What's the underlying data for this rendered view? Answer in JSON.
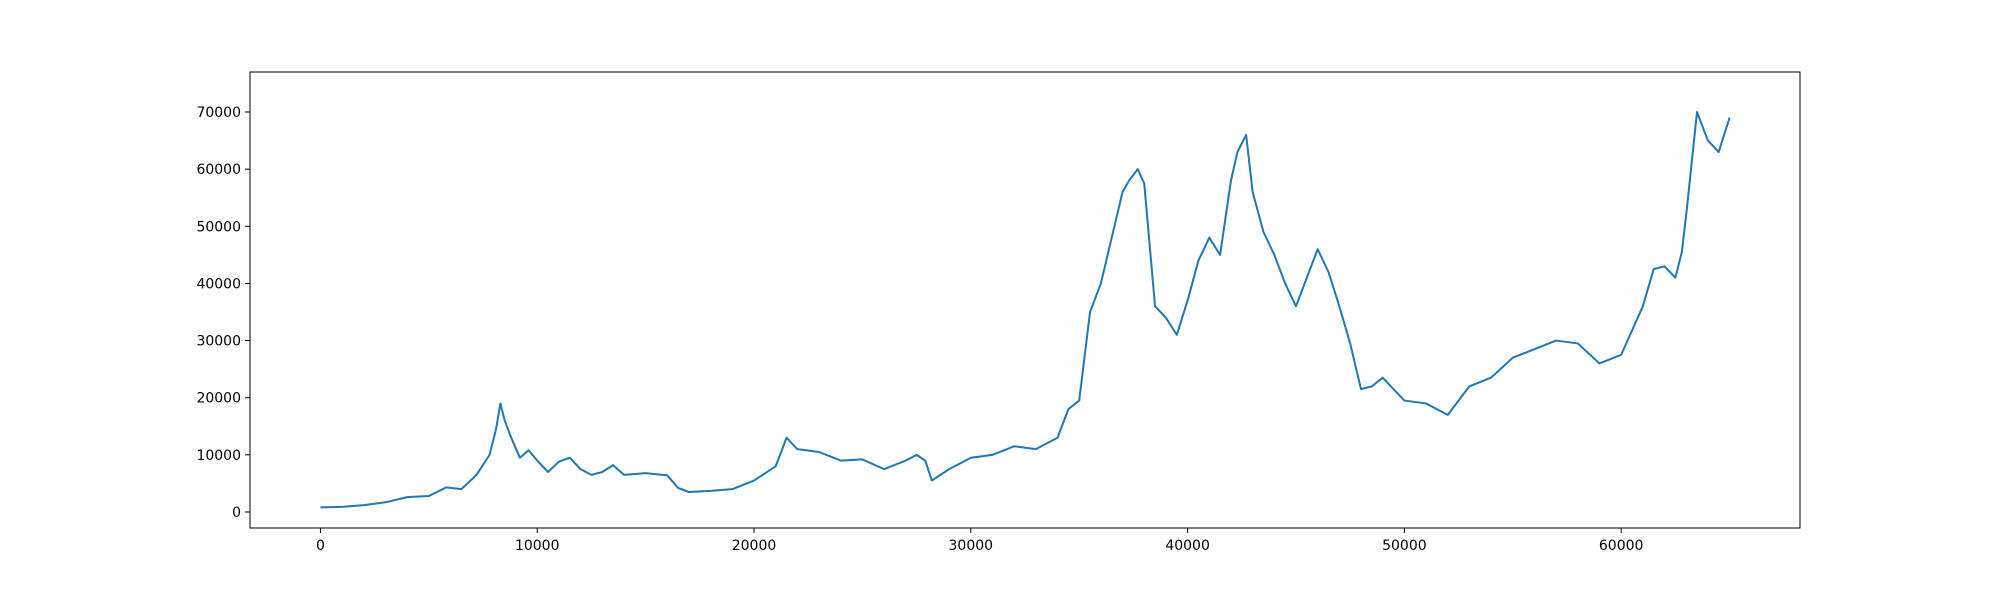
{
  "chart_data": {
    "type": "line",
    "title": "",
    "xlabel": "",
    "ylabel": "",
    "xlim": [
      -3250,
      68250
    ],
    "ylim": [
      -2800,
      77000
    ],
    "xticks": [
      0,
      10000,
      20000,
      30000,
      40000,
      50000,
      60000
    ],
    "xtick_labels": [
      "0",
      "10000",
      "20000",
      "30000",
      "40000",
      "50000",
      "60000"
    ],
    "yticks": [
      0,
      10000,
      20000,
      30000,
      40000,
      50000,
      60000,
      70000
    ],
    "ytick_labels": [
      "0",
      "10000",
      "20000",
      "30000",
      "40000",
      "50000",
      "60000",
      "70000"
    ],
    "grid": false,
    "series": [
      {
        "color": "#1f77b4",
        "x": [
          0,
          1000,
          2000,
          3000,
          4000,
          5000,
          5800,
          6500,
          7200,
          7800,
          8100,
          8300,
          8500,
          8800,
          9200,
          9600,
          10000,
          10500,
          11000,
          11500,
          12000,
          12500,
          13000,
          13500,
          14000,
          15000,
          16000,
          16500,
          17000,
          18000,
          19000,
          20000,
          21000,
          21500,
          22000,
          23000,
          24000,
          25000,
          26000,
          27000,
          27500,
          27900,
          28200,
          29000,
          30000,
          31000,
          32000,
          33000,
          34000,
          34500,
          35000,
          35500,
          36000,
          36500,
          37000,
          37300,
          37700,
          38000,
          38500,
          39000,
          39500,
          40000,
          40500,
          41000,
          41500,
          42000,
          42300,
          42700,
          43000,
          43500,
          44000,
          44500,
          45000,
          45500,
          46000,
          46500,
          47000,
          47500,
          48000,
          48500,
          49000,
          50000,
          51000,
          52000,
          53000,
          54000,
          55000,
          56000,
          57000,
          58000,
          59000,
          60000,
          61000,
          61500,
          62000,
          62500,
          62800,
          63000,
          63500,
          64000,
          64500,
          65000
        ],
        "y": [
          800,
          900,
          1200,
          1700,
          2600,
          2800,
          4300,
          4000,
          6500,
          10000,
          14500,
          19000,
          16000,
          13000,
          9500,
          10800,
          9000,
          7000,
          8800,
          9500,
          7500,
          6500,
          7000,
          8200,
          6500,
          6800,
          6400,
          4200,
          3500,
          3700,
          4000,
          5500,
          8000,
          13000,
          11000,
          10500,
          9000,
          9200,
          7500,
          9000,
          10000,
          9000,
          5500,
          7500,
          9500,
          10000,
          11500,
          11000,
          13000,
          18000,
          19500,
          35000,
          40000,
          48000,
          56000,
          58000,
          60000,
          57500,
          36000,
          34000,
          31000,
          37000,
          44000,
          48000,
          45000,
          58000,
          63000,
          66000,
          56000,
          49000,
          45000,
          40000,
          36000,
          41000,
          46000,
          42000,
          36000,
          29500,
          21500,
          22000,
          23500,
          19500,
          19000,
          17000,
          22000,
          23500,
          27000,
          28500,
          30000,
          29500,
          26000,
          27500,
          36000,
          42500,
          43000,
          41000,
          45500,
          52000,
          70000,
          65000,
          63000,
          69000
        ]
      }
    ]
  }
}
